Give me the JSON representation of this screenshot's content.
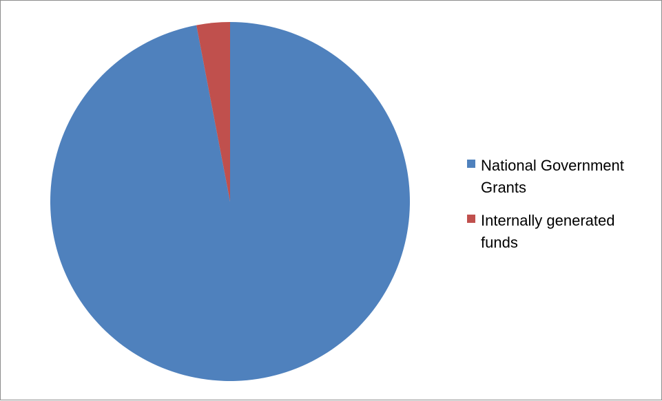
{
  "chart_data": {
    "type": "pie",
    "title": "",
    "slices": [
      {
        "label": "National Government Grants",
        "value": 97,
        "color": "#4F81BD"
      },
      {
        "label": "Internally generated funds",
        "value": 3,
        "color": "#C0504D"
      }
    ],
    "start_angle_deg": 0,
    "direction": "counterclockwise-from-top for last slice",
    "legend_position": "right"
  }
}
